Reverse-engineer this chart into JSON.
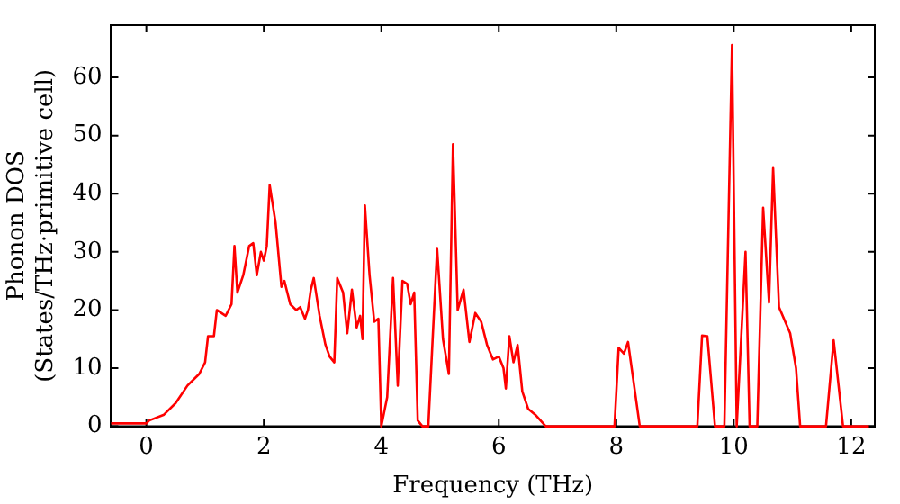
{
  "chart_data": {
    "type": "line",
    "xlabel": "Frequency (THz)",
    "ylabel": "Phonon DOS\n(States/THz·primitive cell)",
    "xlim": [
      -0.6,
      12.4
    ],
    "ylim": [
      0,
      69
    ],
    "xticks": [
      0,
      2,
      4,
      6,
      8,
      10,
      12
    ],
    "yticks": [
      0,
      10,
      20,
      30,
      40,
      50,
      60
    ],
    "grid": false,
    "legend": false,
    "marker": "none",
    "line_style": "solid",
    "series": [
      {
        "color": "#ff0000",
        "x": [
          -0.6,
          0,
          0.05,
          0.3,
          0.5,
          0.7,
          0.9,
          1.0,
          1.05,
          1.15,
          1.2,
          1.35,
          1.45,
          1.5,
          1.55,
          1.65,
          1.75,
          1.82,
          1.88,
          1.95,
          2.0,
          2.05,
          2.1,
          2.2,
          2.3,
          2.35,
          2.45,
          2.55,
          2.62,
          2.7,
          2.75,
          2.8,
          2.85,
          2.95,
          3.05,
          3.12,
          3.2,
          3.25,
          3.35,
          3.42,
          3.5,
          3.58,
          3.64,
          3.68,
          3.72,
          3.8,
          3.88,
          3.95,
          4.0,
          4.1,
          4.2,
          4.28,
          4.36,
          4.44,
          4.5,
          4.56,
          4.62,
          4.7,
          4.8,
          4.95,
          5.05,
          5.15,
          5.22,
          5.3,
          5.4,
          5.5,
          5.6,
          5.7,
          5.8,
          5.9,
          6.0,
          6.08,
          6.12,
          6.18,
          6.25,
          6.32,
          6.4,
          6.5,
          6.62,
          6.8,
          7.97,
          8.04,
          8.13,
          8.2,
          8.4,
          9.38,
          9.46,
          9.55,
          9.68,
          9.84,
          9.97,
          10.05,
          10.2,
          10.27,
          10.4,
          10.5,
          10.6,
          10.67,
          10.77,
          10.96,
          11.06,
          11.13,
          11.57,
          11.7,
          11.86,
          12.3
        ],
        "values": [
          0.5,
          0.5,
          1,
          2,
          4,
          7,
          9,
          11,
          15.5,
          15.5,
          20,
          19,
          21,
          31,
          23,
          26,
          31,
          31.5,
          26,
          30,
          28.5,
          31,
          41.5,
          35,
          24,
          25,
          21,
          20,
          20.5,
          18.5,
          20,
          23.5,
          25.5,
          19,
          14,
          12,
          11,
          25.5,
          23,
          16,
          23.5,
          17,
          19,
          15,
          38,
          26,
          18,
          18.5,
          0,
          5,
          25.5,
          7,
          25,
          24.5,
          21,
          23,
          1,
          0,
          0,
          30.5,
          15,
          9,
          48.5,
          20,
          23.5,
          14.5,
          19.5,
          18,
          14,
          11.5,
          12,
          10,
          6.5,
          15.5,
          11,
          14,
          6,
          3,
          2,
          0,
          0,
          13.5,
          12.5,
          14.5,
          0,
          0,
          15.6,
          15.5,
          0,
          0,
          65.6,
          0,
          30,
          0,
          0,
          37.6,
          21.3,
          44.4,
          20.5,
          16,
          10,
          0,
          0,
          14.8,
          0,
          0
        ]
      }
    ]
  }
}
